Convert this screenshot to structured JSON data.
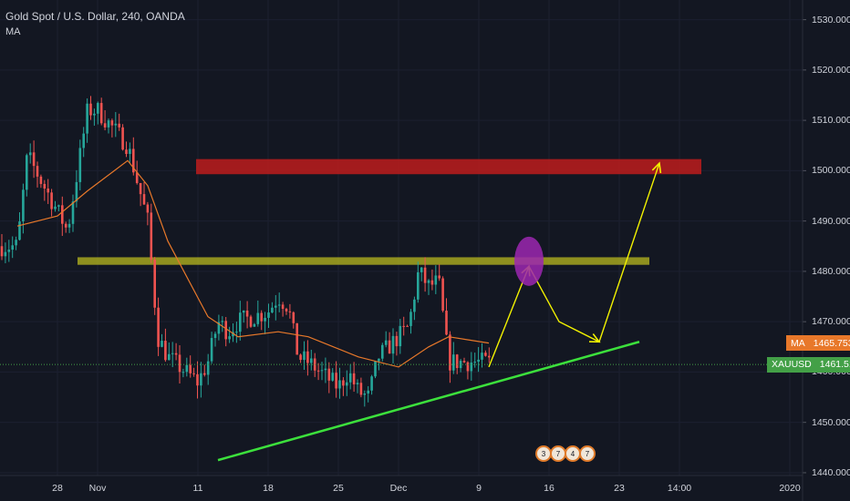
{
  "header": {
    "title": "Gold Spot / U.S. Dollar, 240, OANDA",
    "indicator": "MA"
  },
  "colors": {
    "bull": "#26a69a",
    "bear": "#ef5350",
    "ma": "#e8782a",
    "resistance": "#b71c1c",
    "pivot": "#bfbf1f",
    "trend": "#3ce03c",
    "arrow": "#f2f200",
    "marker": "#9c27b0"
  },
  "badges": {
    "ma": {
      "name": "MA",
      "value": "1465.753"
    },
    "price": {
      "name": "XAUUSD",
      "value": "1461.510"
    }
  },
  "events": [
    "3",
    "7",
    "4",
    "7"
  ],
  "chart_data": {
    "type": "candlestick",
    "symbol": "XAUUSD",
    "timeframe": "240",
    "ylim": [
      1438,
      1533
    ],
    "y_ticks": [
      "1530.000",
      "1520.000",
      "1510.000",
      "1500.000",
      "1490.000",
      "1480.000",
      "1470.000",
      "1460.000",
      "1450.000",
      "1440.000"
    ],
    "x_ticks": [
      "28",
      "Nov",
      "11",
      "18",
      "25",
      "Dec",
      "9",
      "16",
      "23",
      "14:00",
      "2020"
    ],
    "price_anchors": [
      [
        "Oct 24",
        1485
      ],
      [
        "Oct 25",
        1503
      ],
      [
        "Oct 28",
        1492
      ],
      [
        "Oct 29",
        1488
      ],
      [
        "Oct 31",
        1512
      ],
      [
        "Nov 1",
        1512
      ],
      [
        "Nov 4",
        1505
      ],
      [
        "Nov 6",
        1490
      ],
      [
        "Nov 7",
        1467
      ],
      [
        "Nov 8",
        1463
      ],
      [
        "Nov 11",
        1458
      ],
      [
        "Nov 12",
        1462
      ],
      [
        "Nov 13",
        1470
      ],
      [
        "Nov 14",
        1468
      ],
      [
        "Nov 15",
        1470
      ],
      [
        "Nov 18",
        1472
      ],
      [
        "Nov 19",
        1475
      ],
      [
        "Nov 20",
        1473
      ],
      [
        "Nov 21",
        1463
      ],
      [
        "Nov 22",
        1462
      ],
      [
        "Nov 25",
        1457
      ],
      [
        "Nov 26",
        1460
      ],
      [
        "Nov 27",
        1456
      ],
      [
        "Nov 28",
        1455
      ],
      [
        "Nov 29",
        1463
      ],
      [
        "Dec 2",
        1469
      ],
      [
        "Dec 3",
        1480
      ],
      [
        "Dec 4",
        1477
      ],
      [
        "Dec 5",
        1478
      ],
      [
        "Dec 6",
        1462
      ],
      [
        "Dec 9",
        1462
      ]
    ],
    "ma_anchors": [
      [
        "Oct 24",
        1489
      ],
      [
        "Oct 28",
        1491
      ],
      [
        "Oct 31",
        1496
      ],
      [
        "Nov 4",
        1502
      ],
      [
        "Nov 6",
        1497
      ],
      [
        "Nov 8",
        1486
      ],
      [
        "Nov 12",
        1471
      ],
      [
        "Nov 15",
        1467
      ],
      [
        "Nov 19",
        1468
      ],
      [
        "Nov 22",
        1467
      ],
      [
        "Nov 27",
        1463
      ],
      [
        "Dec 1",
        1461
      ],
      [
        "Dec 4",
        1465
      ],
      [
        "Dec 6",
        1467
      ],
      [
        "Dec 10",
        1465.753
      ]
    ],
    "last_price": 1461.51,
    "last_ma": 1465.753,
    "annotations": {
      "resistance_zone": {
        "from": "Nov 11",
        "to": "Dec 31",
        "low": 1499.3,
        "high": 1502.3
      },
      "pivot_zone": {
        "from": "Oct 30",
        "to": "Dec 26",
        "low": 1481.3,
        "high": 1482.8
      },
      "trendline": {
        "start": [
          "Nov 13",
          1442.5
        ],
        "end": [
          "Dec 25",
          1466
        ]
      },
      "projection": [
        [
          "Dec 10",
          1461
        ],
        [
          "Dec 14",
          1481
        ],
        [
          "Dec 17",
          1470
        ],
        [
          "Dec 21",
          1466
        ],
        [
          "Dec 27",
          1501.5
        ]
      ],
      "marker": {
        "date": "Dec 14",
        "price": 1482
      }
    }
  }
}
